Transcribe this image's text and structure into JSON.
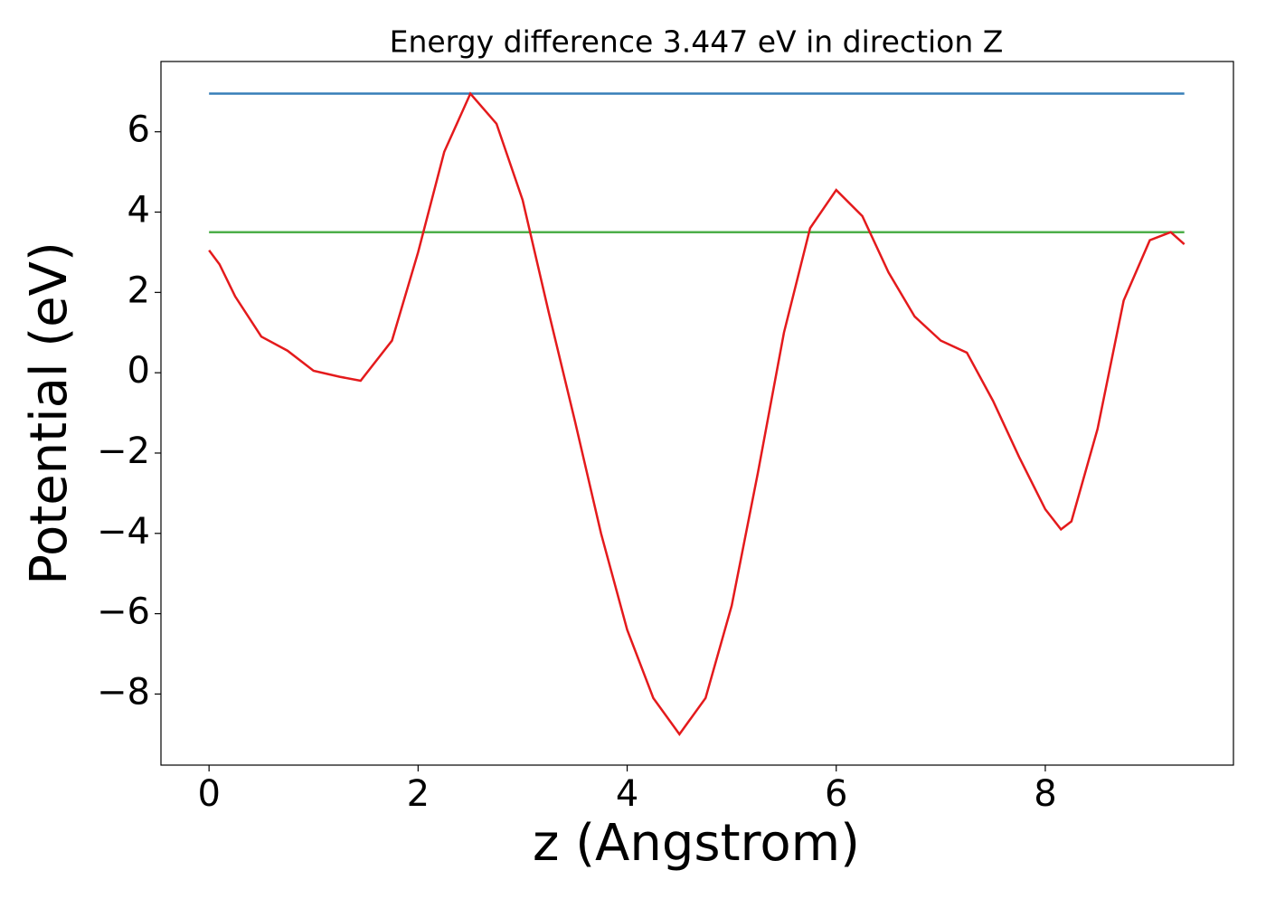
{
  "chart_data": {
    "type": "line",
    "title": "Energy difference 3.447 eV in direction Z",
    "xlabel": "z (Angstrom)",
    "ylabel": "Potential (eV)",
    "xlim": [
      -0.46,
      9.8
    ],
    "ylim": [
      -9.77,
      7.75
    ],
    "xticks": [
      0,
      2,
      4,
      6,
      8
    ],
    "yticks": [
      6,
      4,
      2,
      0,
      -2,
      -4,
      -6,
      -8
    ],
    "series": [
      {
        "color": "#377eb8",
        "x": [
          0,
          9.33
        ],
        "values": [
          6.95,
          6.95
        ]
      },
      {
        "color": "#4daf4a",
        "x": [
          0,
          9.33
        ],
        "values": [
          3.5,
          3.5
        ]
      },
      {
        "color": "#e41a1c",
        "x": [
          0,
          0.1,
          0.25,
          0.5,
          0.75,
          1.0,
          1.25,
          1.45,
          1.75,
          2.0,
          2.25,
          2.5,
          2.75,
          3.0,
          3.25,
          3.5,
          3.75,
          4.0,
          4.25,
          4.5,
          4.75,
          5.0,
          5.25,
          5.5,
          5.75,
          6.0,
          6.25,
          6.5,
          6.75,
          7.0,
          7.25,
          7.5,
          7.75,
          8.0,
          8.15,
          8.25,
          8.5,
          8.75,
          9.0,
          9.2,
          9.33
        ],
        "values": [
          3.05,
          2.7,
          1.9,
          0.9,
          0.55,
          0.05,
          -0.1,
          -0.2,
          0.8,
          3.0,
          5.5,
          6.95,
          6.2,
          4.3,
          1.5,
          -1.2,
          -4.0,
          -6.4,
          -8.1,
          -9.0,
          -8.1,
          -5.8,
          -2.5,
          1.0,
          3.6,
          4.55,
          3.9,
          2.5,
          1.4,
          0.8,
          0.5,
          -0.7,
          -2.1,
          -3.4,
          -3.9,
          -3.7,
          -1.4,
          1.8,
          3.3,
          3.5,
          3.2
        ]
      }
    ]
  }
}
